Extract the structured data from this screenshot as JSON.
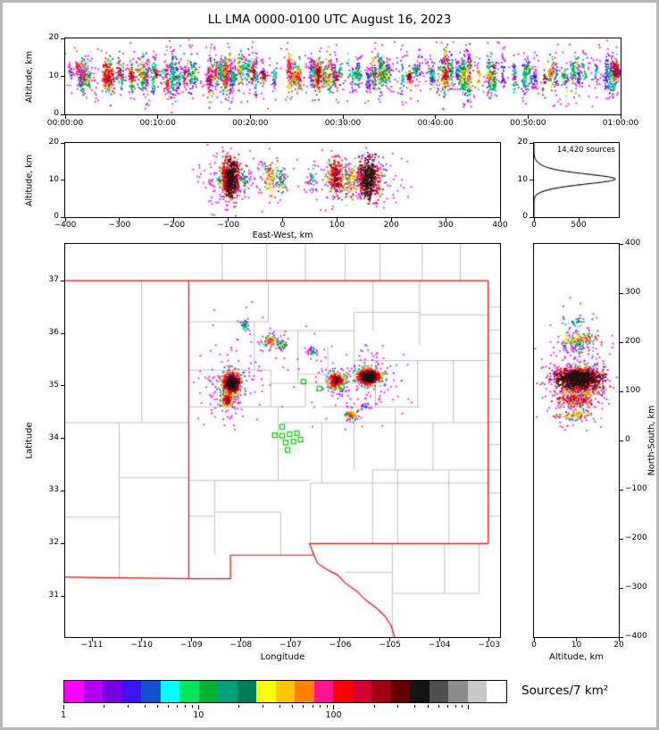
{
  "chart_data": {
    "type": "scatter",
    "title": "LL LMA 0000-0100 UTC August 16, 2023",
    "colorbar": {
      "label": "Sources/7 km²",
      "scale": "log",
      "tick_labels": [
        "1",
        "10",
        "100"
      ],
      "colors": [
        "#ff00ff",
        "#b200f0",
        "#7a00e0",
        "#3c14f0",
        "#1450d2",
        "#00ffff",
        "#00e65a",
        "#00b432",
        "#00a078",
        "#007d5a",
        "#ffff00",
        "#ffc800",
        "#ff8200",
        "#ff1493",
        "#ff0000",
        "#d20032",
        "#a00014",
        "#640000",
        "#141414",
        "#505050",
        "#8c8c8c",
        "#c8c8c8",
        "#ffffff"
      ]
    },
    "map_borders": {
      "state_color": "#ff0000",
      "county_color": "#b0b0b0"
    },
    "panels": {
      "time_height": {
        "ylabel": "Altitude, km",
        "ylim": [
          0,
          20
        ],
        "yticks": [
          0,
          10,
          20
        ],
        "xticks": [
          "00:00:00",
          "00:10:00",
          "00:20:00",
          "00:30:00",
          "00:40:00",
          "00:50:00",
          "01:00:00"
        ],
        "xlim_minutes": [
          0,
          60
        ],
        "bursts": {
          "count": 150,
          "points": [
            10,
            55
          ]
        }
      },
      "ew_height": {
        "xlabel": "East-West, km",
        "ylabel": "Altitude, km",
        "xlim": [
          -400,
          400
        ],
        "ylim": [
          0,
          20
        ],
        "xticks": [
          -400,
          -300,
          -200,
          -100,
          0,
          100,
          200,
          300,
          400
        ],
        "yticks": [
          0,
          10,
          20
        ]
      },
      "alt_histogram": {
        "annotation": "14,420 sources",
        "xlim": [
          0,
          950
        ],
        "xticks": [
          0,
          500
        ],
        "ylim": [
          0,
          20
        ],
        "yticks": [
          0,
          10,
          20
        ],
        "components": [
          [
            10.2,
            1.3,
            840
          ],
          [
            12.3,
            1.6,
            140
          ],
          [
            7.8,
            1.1,
            90
          ]
        ]
      },
      "map": {
        "xlabel": "Longitude",
        "ylabel": "Latitude",
        "xlim": [
          -111.54,
          -102.78
        ],
        "ylim": [
          30.22,
          37.7
        ],
        "xticks": [
          -111,
          -110,
          -109,
          -108,
          -107,
          -106,
          -105,
          -104,
          -103
        ],
        "yticks": [
          31,
          32,
          33,
          34,
          35,
          36,
          37
        ],
        "network_center": [
          -107.15,
          33.98
        ],
        "station_color": "#00cc00",
        "stations": [
          [
            -106.74,
            35.08
          ],
          [
            -106.42,
            34.95
          ],
          [
            -105.97,
            34.99
          ],
          [
            -107.17,
            34.22
          ],
          [
            -107.32,
            34.06
          ],
          [
            -107.17,
            34.05
          ],
          [
            -107.02,
            34.08
          ],
          [
            -106.87,
            34.1
          ],
          [
            -107.1,
            33.92
          ],
          [
            -106.94,
            33.94
          ],
          [
            -106.8,
            33.98
          ],
          [
            -107.06,
            33.78
          ]
        ],
        "clusters": [
          {
            "lon": -108.18,
            "lat": 35.05,
            "sx": 0.1,
            "sy": 0.11,
            "alt": 10.4,
            "sa": 2.6,
            "n": 520,
            "peak": 500
          },
          {
            "lon": -108.28,
            "lat": 34.73,
            "sx": 0.06,
            "sy": 0.07,
            "alt": 10.0,
            "sa": 2.2,
            "n": 170,
            "peak": 180
          },
          {
            "lon": -108.22,
            "lat": 34.9,
            "sx": 0.04,
            "sy": 0.06,
            "alt": 9.8,
            "sa": 2.0,
            "n": 70,
            "peak": 70
          },
          {
            "lon": -107.93,
            "lat": 36.15,
            "sx": 0.05,
            "sy": 0.05,
            "alt": 10.5,
            "sa": 1.8,
            "n": 30,
            "peak": 20
          },
          {
            "lon": -107.4,
            "lat": 35.85,
            "sx": 0.07,
            "sy": 0.06,
            "alt": 10.8,
            "sa": 2.0,
            "n": 90,
            "peak": 80
          },
          {
            "lon": -107.18,
            "lat": 35.78,
            "sx": 0.05,
            "sy": 0.04,
            "alt": 10.2,
            "sa": 1.8,
            "n": 45,
            "peak": 35
          },
          {
            "lon": -106.55,
            "lat": 35.65,
            "sx": 0.04,
            "sy": 0.04,
            "alt": 10.0,
            "sa": 1.6,
            "n": 28,
            "peak": 18
          },
          {
            "lon": -106.08,
            "lat": 35.1,
            "sx": 0.09,
            "sy": 0.08,
            "alt": 10.6,
            "sa": 2.4,
            "n": 250,
            "peak": 250
          },
          {
            "lon": -105.42,
            "lat": 35.17,
            "sx": 0.12,
            "sy": 0.08,
            "alt": 10.3,
            "sa": 2.6,
            "n": 500,
            "peak": 550
          },
          {
            "lon": -105.78,
            "lat": 34.45,
            "sx": 0.06,
            "sy": 0.05,
            "alt": 9.6,
            "sa": 2.0,
            "n": 85,
            "peak": 80
          },
          {
            "lon": -105.5,
            "lat": 34.62,
            "sx": 0.035,
            "sy": 0.03,
            "alt": 10.0,
            "sa": 1.5,
            "n": 18,
            "peak": 8
          }
        ],
        "state_border": [
          [
            [
              -111.54,
              37.0
            ],
            [
              -103.02,
              37.0
            ]
          ],
          [
            [
              -109.05,
              37.0
            ],
            [
              -109.05,
              31.33
            ]
          ],
          [
            [
              -111.54,
              31.36
            ],
            [
              -109.05,
              31.33
            ]
          ],
          [
            [
              -109.05,
              31.33
            ],
            [
              -108.21,
              31.33
            ],
            [
              -108.21,
              31.78
            ],
            [
              -106.53,
              31.78
            ]
          ],
          [
            [
              -106.53,
              31.78
            ],
            [
              -106.45,
              31.62
            ],
            [
              -106.22,
              31.48
            ],
            [
              -106.05,
              31.4
            ],
            [
              -105.9,
              31.25
            ],
            [
              -105.65,
              31.08
            ],
            [
              -105.48,
              30.92
            ],
            [
              -105.28,
              30.78
            ],
            [
              -105.1,
              30.62
            ],
            [
              -104.98,
              30.45
            ],
            [
              -104.9,
              30.22
            ]
          ],
          [
            [
              -103.02,
              37.0
            ],
            [
              -103.02,
              32.0
            ]
          ],
          [
            [
              -103.02,
              32.0
            ],
            [
              -106.62,
              32.0
            ],
            [
              -106.53,
              31.78
            ]
          ]
        ],
        "county_lines": [
          [
            [
              -108.53,
              31.78
            ],
            [
              -108.53,
              33.2
            ]
          ],
          [
            [
              -107.2,
              31.78
            ],
            [
              -107.2,
              32.6
            ]
          ],
          [
            [
              -106.6,
              32.0
            ],
            [
              -106.6,
              33.15
            ]
          ],
          [
            [
              -105.35,
              32.0
            ],
            [
              -105.35,
              33.4
            ]
          ],
          [
            [
              -104.84,
              32.0
            ],
            [
              -104.84,
              33.4
            ]
          ],
          [
            [
              -103.81,
              32.0
            ],
            [
              -103.81,
              33.4
            ]
          ],
          [
            [
              -109.05,
              32.52
            ],
            [
              -108.53,
              32.52
            ]
          ],
          [
            [
              -108.53,
              32.6
            ],
            [
              -107.2,
              32.6
            ]
          ],
          [
            [
              -109.05,
              33.2
            ],
            [
              -106.6,
              33.2
            ]
          ],
          [
            [
              -106.6,
              33.15
            ],
            [
              -103.02,
              33.15
            ]
          ],
          [
            [
              -105.35,
              33.4
            ],
            [
              -103.02,
              33.4
            ]
          ],
          [
            [
              -106.37,
              33.15
            ],
            [
              -106.37,
              34.3
            ]
          ],
          [
            [
              -105.72,
              33.4
            ],
            [
              -105.72,
              34.3
            ]
          ],
          [
            [
              -104.89,
              33.4
            ],
            [
              -104.89,
              34.6
            ]
          ],
          [
            [
              -104.13,
              33.4
            ],
            [
              -104.13,
              34.3
            ]
          ],
          [
            [
              -107.2,
              34.3
            ],
            [
              -103.02,
              34.3
            ]
          ],
          [
            [
              -109.05,
              34.6
            ],
            [
              -106.7,
              34.6
            ]
          ],
          [
            [
              -106.37,
              34.6
            ],
            [
              -104.4,
              34.6
            ]
          ],
          [
            [
              -107.25,
              33.2
            ],
            [
              -107.25,
              34.6
            ]
          ],
          [
            [
              -106.7,
              34.6
            ],
            [
              -106.7,
              35.05
            ]
          ],
          [
            [
              -107.4,
              35.05
            ],
            [
              -105.29,
              35.05
            ]
          ],
          [
            [
              -107.4,
              34.6
            ],
            [
              -107.4,
              35.3
            ]
          ],
          [
            [
              -109.05,
              35.3
            ],
            [
              -107.4,
              35.3
            ]
          ],
          [
            [
              -107.73,
              35.3
            ],
            [
              -107.73,
              36.22
            ]
          ],
          [
            [
              -109.05,
              36.22
            ],
            [
              -107.45,
              36.22
            ]
          ],
          [
            [
              -107.45,
              36.22
            ],
            [
              -107.45,
              37.0
            ]
          ],
          [
            [
              -106.85,
              35.05
            ],
            [
              -106.85,
              36.05
            ]
          ],
          [
            [
              -107.45,
              36.05
            ],
            [
              -105.72,
              36.05
            ]
          ],
          [
            [
              -106.25,
              35.05
            ],
            [
              -106.25,
              35.75
            ]
          ],
          [
            [
              -106.85,
              35.22
            ],
            [
              -106.25,
              35.22
            ]
          ],
          [
            [
              -105.72,
              35.05
            ],
            [
              -105.72,
              36.4
            ]
          ],
          [
            [
              -105.34,
              36.05
            ],
            [
              -105.34,
              37.0
            ]
          ],
          [
            [
              -105.72,
              36.4
            ],
            [
              -104.4,
              36.4
            ]
          ],
          [
            [
              -104.4,
              35.77
            ],
            [
              -104.4,
              37.0
            ]
          ],
          [
            [
              -105.72,
              35.48
            ],
            [
              -103.02,
              35.48
            ]
          ],
          [
            [
              -105.29,
              34.6
            ],
            [
              -105.29,
              35.48
            ]
          ],
          [
            [
              -103.72,
              34.3
            ],
            [
              -103.72,
              35.48
            ]
          ],
          [
            [
              -104.44,
              34.6
            ],
            [
              -104.44,
              35.48
            ]
          ],
          [
            [
              -104.4,
              36.35
            ],
            [
              -103.02,
              36.35
            ]
          ],
          [
            [
              -110.45,
              31.36
            ],
            [
              -110.45,
              34.3
            ]
          ],
          [
            [
              -110.0,
              34.3
            ],
            [
              -110.0,
              37.0
            ]
          ],
          [
            [
              -111.54,
              34.3
            ],
            [
              -109.05,
              34.3
            ]
          ],
          [
            [
              -110.45,
              33.25
            ],
            [
              -109.05,
              33.25
            ]
          ],
          [
            [
              -111.54,
              32.5
            ],
            [
              -110.45,
              32.5
            ]
          ],
          [
            [
              -108.38,
              37.0
            ],
            [
              -108.38,
              37.7
            ]
          ],
          [
            [
              -107.48,
              37.0
            ],
            [
              -107.48,
              37.7
            ]
          ],
          [
            [
              -106.7,
              37.0
            ],
            [
              -106.7,
              37.7
            ]
          ],
          [
            [
              -105.9,
              37.0
            ],
            [
              -105.9,
              37.7
            ]
          ],
          [
            [
              -105.2,
              37.0
            ],
            [
              -105.2,
              37.7
            ]
          ],
          [
            [
              -104.35,
              37.0
            ],
            [
              -104.35,
              37.7
            ]
          ],
          [
            [
              -103.58,
              37.0
            ],
            [
              -103.58,
              37.7
            ]
          ],
          [
            [
              -103.02,
              36.5
            ],
            [
              -102.78,
              36.5
            ]
          ],
          [
            [
              -103.02,
              36.06
            ],
            [
              -102.78,
              36.06
            ]
          ],
          [
            [
              -103.02,
              35.62
            ],
            [
              -102.78,
              35.62
            ]
          ],
          [
            [
              -103.02,
              35.18
            ],
            [
              -102.78,
              35.18
            ]
          ],
          [
            [
              -103.02,
              34.75
            ],
            [
              -102.78,
              34.75
            ]
          ],
          [
            [
              -103.02,
              34.31
            ],
            [
              -102.78,
              34.31
            ]
          ],
          [
            [
              -103.02,
              33.88
            ],
            [
              -102.78,
              33.88
            ]
          ],
          [
            [
              -103.02,
              33.4
            ],
            [
              -102.78,
              33.4
            ]
          ],
          [
            [
              -103.02,
              32.96
            ],
            [
              -102.78,
              32.96
            ]
          ],
          [
            [
              -103.02,
              32.52
            ],
            [
              -102.78,
              32.52
            ]
          ],
          [
            [
              -104.95,
              32.0
            ],
            [
              -104.95,
              30.22
            ]
          ],
          [
            [
              -105.9,
              31.45
            ],
            [
              -104.95,
              31.45
            ]
          ],
          [
            [
              -104.95,
              31.05
            ],
            [
              -103.2,
              31.05
            ]
          ],
          [
            [
              -103.2,
              32.0
            ],
            [
              -103.2,
              31.05
            ]
          ],
          [
            [
              -103.9,
              32.0
            ],
            [
              -103.9,
              31.05
            ]
          ]
        ]
      },
      "ns_height": {
        "xlabel": "Altitude, km",
        "ylabel": "North-South, km",
        "xlim": [
          0,
          20
        ],
        "ylim": [
          -400,
          400
        ],
        "xticks": [
          0,
          10,
          20
        ],
        "yticks": [
          -400,
          -300,
          -200,
          -100,
          0,
          100,
          200,
          300,
          400
        ]
      }
    }
  }
}
